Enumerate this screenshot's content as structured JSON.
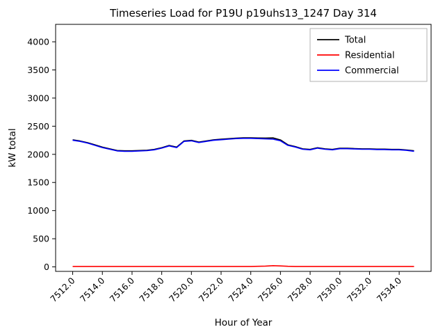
{
  "figure": {
    "background": "#ffffff"
  },
  "chart_data": {
    "type": "line",
    "title": "Timeseries Load for P19U p19uhs13_1247  Day 314",
    "xlabel": "Hour of Year",
    "ylabel": "kW total",
    "xlim": [
      7510.85,
      7536.15
    ],
    "ylim": [
      -80,
      4310
    ],
    "grid": false,
    "xticks": [
      7512,
      7514,
      7516,
      7518,
      7520,
      7522,
      7524,
      7526,
      7528,
      7530,
      7532,
      7534
    ],
    "xtick_labels": [
      "7512.0",
      "7514.0",
      "7516.0",
      "7518.0",
      "7520.0",
      "7522.0",
      "7524.0",
      "7526.0",
      "7528.0",
      "7530.0",
      "7532.0",
      "7534.0"
    ],
    "yticks": [
      0,
      500,
      1000,
      1500,
      2000,
      2500,
      3000,
      3500,
      4000
    ],
    "ytick_labels": [
      "0",
      "500",
      "1000",
      "1500",
      "2000",
      "2500",
      "3000",
      "3500",
      "4000"
    ],
    "legend": {
      "position": "upper right",
      "entries": [
        {
          "label": "Total",
          "color": "#000000"
        },
        {
          "label": "Residential",
          "color": "#ff0000"
        },
        {
          "label": "Commercial",
          "color": "#0000ff"
        }
      ]
    },
    "x": [
      7512,
      7512.5,
      7513,
      7513.5,
      7514,
      7514.5,
      7515,
      7515.5,
      7516,
      7516.5,
      7517,
      7517.5,
      7518,
      7518.5,
      7519,
      7519.5,
      7520,
      7520.5,
      7521,
      7521.5,
      7522,
      7522.5,
      7523,
      7523.5,
      7524,
      7524.5,
      7525,
      7525.5,
      7526,
      7526.5,
      7527,
      7527.5,
      7528,
      7528.5,
      7529,
      7529.5,
      7530,
      7530.5,
      7531,
      7531.5,
      7532,
      7532.5,
      7533,
      7533.5,
      7534,
      7534.5,
      7535
    ],
    "series": [
      {
        "name": "Total",
        "color": "#000000",
        "values": [
          2258,
          2238,
          2208,
          2168,
          2128,
          2098,
          2068,
          2063,
          2063,
          2068,
          2073,
          2088,
          2118,
          2158,
          2128,
          2238,
          2248,
          2218,
          2238,
          2258,
          2268,
          2278,
          2288,
          2293,
          2293,
          2290,
          2289,
          2292,
          2256,
          2170,
          2138,
          2098,
          2088,
          2118,
          2098,
          2088,
          2108,
          2108,
          2103,
          2098,
          2098,
          2093,
          2093,
          2088,
          2088,
          2078,
          2063
        ]
      },
      {
        "name": "Residential",
        "color": "#ff0000",
        "values": [
          8,
          8,
          8,
          8,
          8,
          8,
          8,
          8,
          8,
          8,
          8,
          8,
          8,
          8,
          8,
          8,
          8,
          8,
          8,
          8,
          8,
          8,
          8,
          8,
          8,
          10,
          14,
          22,
          16,
          10,
          8,
          8,
          8,
          8,
          8,
          8,
          8,
          8,
          8,
          8,
          8,
          8,
          8,
          8,
          8,
          8,
          8
        ]
      },
      {
        "name": "Commercial",
        "color": "#0000ff",
        "values": [
          2250,
          2230,
          2200,
          2160,
          2120,
          2090,
          2060,
          2055,
          2055,
          2060,
          2065,
          2080,
          2110,
          2150,
          2120,
          2230,
          2240,
          2210,
          2230,
          2250,
          2260,
          2270,
          2280,
          2285,
          2285,
          2280,
          2275,
          2270,
          2240,
          2160,
          2130,
          2090,
          2080,
          2110,
          2090,
          2080,
          2100,
          2100,
          2095,
          2090,
          2090,
          2085,
          2085,
          2080,
          2080,
          2070,
          2055
        ]
      }
    ]
  }
}
